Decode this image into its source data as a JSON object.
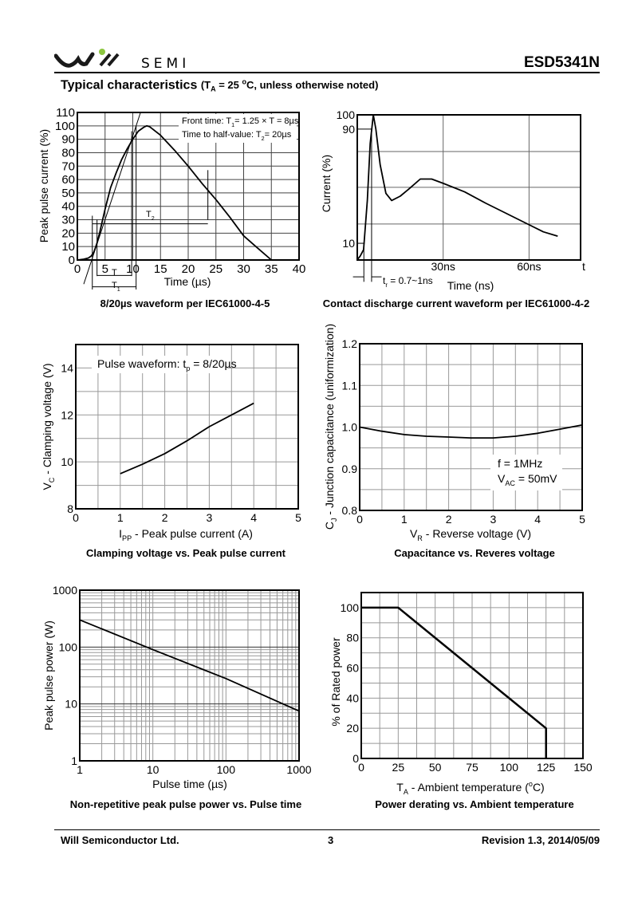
{
  "header": {
    "brand": "SEMI",
    "part_number": "ESD5341N",
    "section_title": "Typical characteristics",
    "section_condition": [
      "(T",
      "A",
      " = 25 ",
      "o",
      "C, unless otherwise noted)"
    ]
  },
  "footer": {
    "company": "Will Semiconductor Ltd.",
    "page": "3",
    "revision": "Revision 1.3, 2014/05/09"
  },
  "colors": {
    "logo_accent": "#8cc63f",
    "text": "#000000",
    "grid": "#999999"
  },
  "chart_data": [
    {
      "type": "line",
      "title": "8/20µs waveform per IEC61000-4-5",
      "xlabel": [
        [
          "Time (µs)",
          ""
        ]
      ],
      "ylabel": [
        [
          "Peak pulse current (%)",
          ""
        ]
      ],
      "xscale": "linear",
      "xlim": [
        0,
        40
      ],
      "ylim": [
        0,
        110
      ],
      "grid": true,
      "xticks": [
        0,
        5,
        10,
        15,
        20,
        25,
        30,
        35,
        40
      ],
      "xtick_labels": [
        "0",
        "5",
        "10",
        "15",
        "20",
        "25",
        "30",
        "35",
        "40"
      ],
      "yticks": [
        0,
        10,
        20,
        30,
        40,
        50,
        60,
        70,
        80,
        90,
        100,
        110
      ],
      "ytick_labels": [
        "0",
        "10",
        "20",
        "30",
        "40",
        "50",
        "60",
        "70",
        "80",
        "90",
        "100",
        "110"
      ],
      "series": [
        {
          "x": [
            0,
            1,
            2,
            2.5,
            3,
            3.5,
            4,
            5,
            6,
            7,
            8,
            9,
            10,
            11,
            12,
            12.5,
            13,
            15,
            17.5,
            20,
            22.5,
            25,
            27.5,
            30,
            32.5,
            35
          ],
          "y": [
            0,
            0.5,
            1.5,
            3,
            6,
            12,
            20,
            38,
            54,
            65,
            75,
            83,
            90,
            96,
            99,
            100,
            99.5,
            93,
            82,
            70,
            57,
            45,
            32,
            18,
            9,
            0
          ]
        }
      ],
      "reference_lines": [
        [
          [
            1.15,
            -18
          ],
          [
            11.4,
            110
          ]
        ],
        [
          [
            2.7,
            -22
          ],
          [
            2.7,
            33
          ]
        ],
        [
          [
            3.55,
            -12
          ],
          [
            3.55,
            30
          ]
        ],
        [
          [
            9.8,
            -12
          ],
          [
            9.8,
            96
          ]
        ],
        [
          [
            10.6,
            -22
          ],
          [
            10.6,
            100
          ]
        ],
        [
          [
            23.55,
            30
          ],
          [
            23.55,
            67
          ]
        ],
        [
          [
            3.55,
            -11.5
          ],
          [
            9.8,
            -11.5
          ]
        ],
        [
          [
            2.7,
            -20
          ],
          [
            10.6,
            -20
          ]
        ],
        [
          [
            2.7,
            27
          ],
          [
            23.55,
            27
          ]
        ]
      ],
      "annotations": [
        [
          [
            "Front time: T",
            ""
          ],
          [
            "1",
            "sub"
          ],
          [
            "= 1.25 × T = 8µs",
            ""
          ]
        ],
        [
          [
            "Time to half-value: T",
            ""
          ],
          [
            "2",
            "sub"
          ],
          [
            "= 20µs",
            ""
          ]
        ],
        [
          [
            "T",
            ""
          ]
        ],
        [
          [
            "T",
            ""
          ],
          [
            "1",
            "sub"
          ]
        ],
        [
          [
            "T",
            ""
          ],
          [
            "2",
            "sub"
          ]
        ]
      ]
    },
    {
      "type": "line",
      "title": "Contact discharge current waveform per IEC61000-4-2",
      "xlabel": [
        [
          "Time (ns)",
          ""
        ]
      ],
      "ylabel": [
        [
          "Current (%)",
          ""
        ]
      ],
      "xscale": "linear",
      "xlim": [
        0,
        78
      ],
      "ylim": [
        -1.7,
        100
      ],
      "grid": true,
      "xticks": [
        30,
        60,
        78
      ],
      "xtick_labels": [
        "30ns",
        "60ns",
        "t"
      ],
      "yticks": [
        100,
        90,
        10
      ],
      "ytick_labels": [
        "100",
        "90",
        "10"
      ],
      "series": [
        {
          "x": [
            0,
            1,
            2.2,
            3.5,
            4.5,
            5.6,
            6.5,
            8,
            10,
            12,
            15,
            18,
            22,
            26,
            30,
            37.5,
            45,
            52,
            59,
            65,
            70
          ],
          "y": [
            -1.5,
            1,
            5.5,
            40,
            80,
            100,
            90,
            65,
            45,
            40,
            43,
            48,
            55,
            55,
            52,
            46,
            38,
            31,
            24,
            18,
            15
          ]
        }
      ],
      "reference_lines": [
        [
          [
            0,
            90
          ],
          [
            5,
            90
          ]
        ],
        [
          [
            0,
            10
          ],
          [
            2.6,
            10
          ]
        ],
        [
          [
            2.3,
            -17
          ],
          [
            2.3,
            10
          ]
        ],
        [
          [
            5.0,
            -17
          ],
          [
            5.0,
            90
          ]
        ],
        [
          [
            -1.5,
            -13.5
          ],
          [
            2.3,
            -13.5
          ]
        ],
        [
          [
            5.0,
            -13.5
          ],
          [
            8.5,
            -13.5
          ]
        ]
      ],
      "annotations": [
        [
          [
            "t",
            ""
          ],
          [
            "r",
            "sub"
          ],
          [
            " = 0.7~1ns",
            ""
          ]
        ]
      ]
    },
    {
      "type": "line",
      "title": "Clamping voltage vs. Peak pulse current",
      "xlabel": [
        [
          "I",
          ""
        ],
        [
          "PP",
          "sub"
        ],
        [
          " - Peak pulse current (A)",
          ""
        ]
      ],
      "ylabel": [
        [
          "V",
          ""
        ],
        [
          "C",
          "sub"
        ],
        [
          " - Clamping voltage (V)",
          ""
        ]
      ],
      "xscale": "linear",
      "xlim": [
        0,
        5
      ],
      "ylim": [
        8,
        15
      ],
      "grid": true,
      "xticks": [
        0,
        1,
        2,
        3,
        4,
        5
      ],
      "xtick_labels": [
        "0",
        "1",
        "2",
        "3",
        "4",
        "5"
      ],
      "yticks": [
        8,
        10,
        12,
        14
      ],
      "ytick_labels": [
        "8",
        "10",
        "12",
        "14"
      ],
      "series": [
        {
          "x": [
            1,
            1.5,
            2,
            2.5,
            3,
            3.5,
            4
          ],
          "y": [
            9.5,
            9.9,
            10.35,
            10.9,
            11.5,
            12.0,
            12.5
          ]
        }
      ],
      "annotations": [
        [
          [
            "Pulse waveform: t",
            ""
          ],
          [
            "p",
            "sub"
          ],
          [
            " = 8/20µs",
            ""
          ]
        ]
      ]
    },
    {
      "type": "line",
      "title": "Capacitance vs. Reveres voltage",
      "xlabel": [
        [
          "V",
          ""
        ],
        [
          "R",
          "sub"
        ],
        [
          " - Reverse voltage (V)",
          ""
        ]
      ],
      "ylabel": [
        [
          "C",
          ""
        ],
        [
          "J",
          "sub"
        ],
        [
          " - Junction capacitance (uniformization)",
          ""
        ]
      ],
      "xscale": "linear",
      "xlim": [
        0,
        5
      ],
      "ylim": [
        0.8,
        1.2
      ],
      "grid": true,
      "xticks": [
        0,
        1,
        2,
        3,
        4,
        5
      ],
      "xtick_labels": [
        "0",
        "1",
        "2",
        "3",
        "4",
        "5"
      ],
      "yticks": [
        0.8,
        0.9,
        1.0,
        1.1,
        1.2
      ],
      "ytick_labels": [
        "0.8",
        "0.9",
        "1.0",
        "1.1",
        "1.2"
      ],
      "series": [
        {
          "x": [
            0,
            0.5,
            1,
            1.5,
            2,
            2.5,
            3,
            3.5,
            4,
            4.5,
            5
          ],
          "y": [
            1.0,
            0.99,
            0.982,
            0.978,
            0.976,
            0.974,
            0.974,
            0.978,
            0.985,
            0.995,
            1.005
          ]
        }
      ],
      "annotations": [
        [
          [
            "f = 1MHz",
            ""
          ]
        ],
        [
          [
            "V",
            ""
          ],
          [
            "AC",
            "sub"
          ],
          [
            " = 50mV",
            ""
          ]
        ]
      ]
    },
    {
      "type": "line",
      "title": "Non-repetitive peak pulse power vs. Pulse time",
      "xlabel": [
        [
          "Pulse time (µs)",
          ""
        ]
      ],
      "ylabel": [
        [
          "Peak pulse power (W)",
          ""
        ]
      ],
      "xscale": "log",
      "yscale": "log",
      "xlim": [
        1,
        1000
      ],
      "ylim": [
        1,
        1000
      ],
      "grid": true,
      "xticks": [
        1,
        10,
        100,
        1000
      ],
      "xtick_labels": [
        "1",
        "10",
        "100",
        "1000"
      ],
      "yticks": [
        1,
        10,
        100,
        1000
      ],
      "ytick_labels": [
        "1",
        "10",
        "100",
        "1000"
      ],
      "series": [
        {
          "x": [
            1,
            10,
            100,
            1000
          ],
          "y": [
            300,
            90,
            28,
            7.5
          ]
        }
      ]
    },
    {
      "type": "line",
      "title": "Power derating vs. Ambient temperature",
      "xlabel": [
        [
          "T",
          ""
        ],
        [
          "A",
          "sub"
        ],
        [
          " - Ambient temperature (",
          ""
        ],
        [
          "o",
          "sup"
        ],
        [
          "C)",
          ""
        ]
      ],
      "ylabel": [
        [
          "% of Rated power",
          ""
        ]
      ],
      "xscale": "linear",
      "xlim": [
        0,
        150
      ],
      "ylim": [
        0,
        110
      ],
      "grid": true,
      "xticks": [
        0,
        25,
        50,
        75,
        100,
        125,
        150
      ],
      "xtick_labels": [
        "0",
        "25",
        "50",
        "75",
        "100",
        "125",
        "150"
      ],
      "yticks": [
        0,
        20,
        40,
        60,
        80,
        100
      ],
      "ytick_labels": [
        "0",
        "20",
        "40",
        "60",
        "80",
        "100"
      ],
      "series": [
        {
          "x": [
            0,
            25,
            125,
            125
          ],
          "y": [
            100,
            100,
            20,
            0
          ]
        }
      ]
    }
  ]
}
